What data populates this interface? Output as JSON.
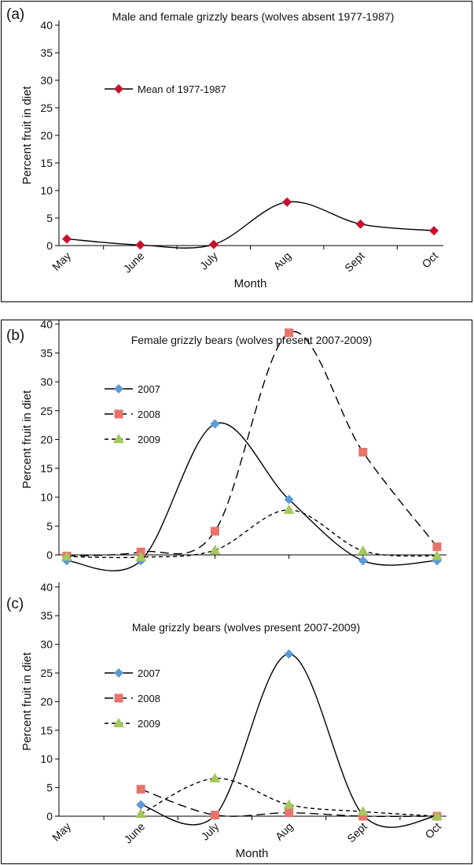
{
  "chart_data": [
    {
      "panel_label": "(a)",
      "type": "line",
      "title": "Male and female grizzly bears (wolves absent 1977-1987)",
      "xlabel": "Month",
      "ylabel": "Percent fruit in diet",
      "categories": [
        "May",
        "June",
        "July",
        "Aug",
        "Sept",
        "Oct"
      ],
      "ylim": [
        0,
        40
      ],
      "yticks": [
        0,
        5,
        10,
        15,
        20,
        25,
        30,
        35,
        40
      ],
      "grid": false,
      "legend_position": "upper-left",
      "series": [
        {
          "name": "Mean of 1977-1987",
          "marker": "diamond",
          "color": "#c8102e",
          "dash": "solid",
          "values": [
            1.2,
            0.1,
            0.2,
            7.9,
            3.9,
            2.7
          ]
        }
      ]
    },
    {
      "panel_label": "(b)",
      "type": "line",
      "title": "Female grizzly bears (wolves present 2007-2009)",
      "xlabel": "",
      "ylabel": "Percent fruit in diet",
      "categories": [
        "May",
        "June",
        "July",
        "Aug",
        "Sept",
        "Oct"
      ],
      "ylim": [
        0,
        40
      ],
      "yticks": [
        0,
        5,
        10,
        15,
        20,
        25,
        30,
        35,
        40
      ],
      "grid": false,
      "legend_position": "upper-left",
      "series": [
        {
          "name": "2007",
          "marker": "diamond",
          "color": "#5b9bd5",
          "dash": "solid",
          "values": [
            -1.0,
            -1.0,
            22.7,
            9.6,
            -1.0,
            -1.0
          ]
        },
        {
          "name": "2008",
          "marker": "square",
          "color": "#e8736c",
          "dash": "long",
          "values": [
            -0.2,
            0.5,
            4.1,
            38.5,
            17.8,
            1.4
          ]
        },
        {
          "name": "2009",
          "marker": "triangle",
          "color": "#a3c95b",
          "dash": "short",
          "values": [
            -0.3,
            -0.4,
            0.8,
            7.8,
            0.7,
            -0.2
          ]
        }
      ]
    },
    {
      "panel_label": "(c)",
      "type": "line",
      "title": "Male grizzly bears (wolves present 2007-2009)",
      "xlabel": "Month",
      "ylabel": "Percent fruit in diet",
      "categories": [
        "May",
        "June",
        "July",
        "Aug",
        "Sept",
        "Oct"
      ],
      "ylim": [
        0,
        40
      ],
      "yticks": [
        0,
        5,
        10,
        15,
        20,
        25,
        30,
        35,
        40
      ],
      "grid": false,
      "legend_position": "upper-left",
      "series": [
        {
          "name": "2007",
          "marker": "diamond",
          "color": "#5b9bd5",
          "dash": "solid",
          "start_index": 1,
          "values": [
            null,
            2.0,
            0.1,
            28.3,
            0.2,
            0.0
          ]
        },
        {
          "name": "2008",
          "marker": "square",
          "color": "#e8736c",
          "dash": "long",
          "start_index": 1,
          "values": [
            null,
            4.7,
            0.2,
            0.6,
            0.0,
            0.0
          ]
        },
        {
          "name": "2009",
          "marker": "triangle",
          "color": "#a3c95b",
          "dash": "short",
          "start_index": 1,
          "values": [
            null,
            0.4,
            6.6,
            2.0,
            0.8,
            0.0
          ]
        }
      ]
    }
  ]
}
